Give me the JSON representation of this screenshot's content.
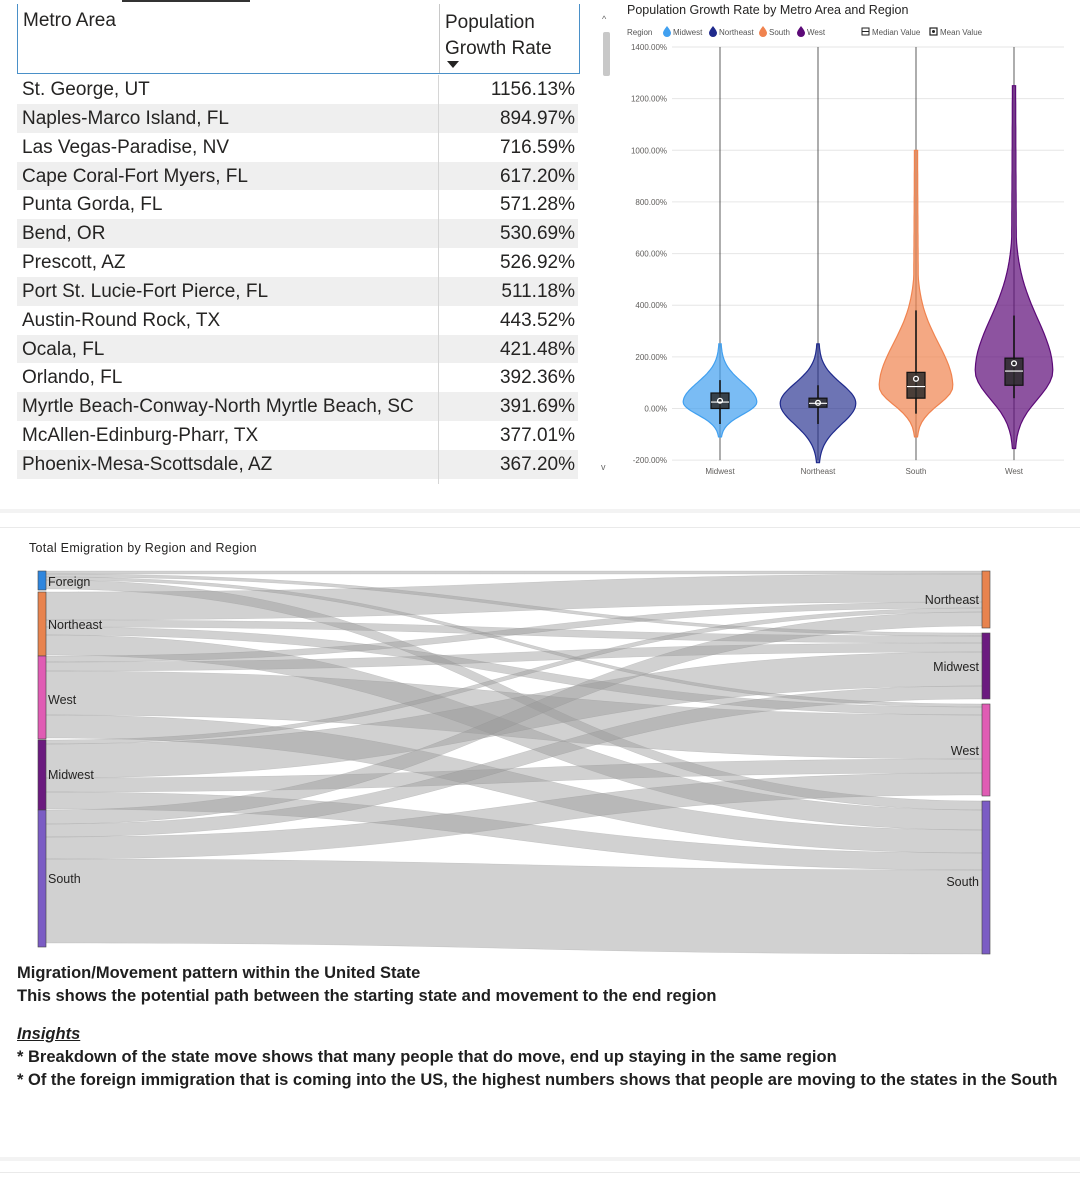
{
  "table": {
    "header_metro": "Metro Area",
    "header_rate": "Population Growth Rate",
    "rows": [
      {
        "metro": "St. George, UT",
        "rate": "1156.13%"
      },
      {
        "metro": "Naples-Marco Island, FL",
        "rate": "894.97%"
      },
      {
        "metro": "Las Vegas-Paradise, NV",
        "rate": "716.59%"
      },
      {
        "metro": "Cape Coral-Fort Myers, FL",
        "rate": "617.20%"
      },
      {
        "metro": "Punta Gorda, FL",
        "rate": "571.28%"
      },
      {
        "metro": "Bend, OR",
        "rate": "530.69%"
      },
      {
        "metro": "Prescott, AZ",
        "rate": "526.92%"
      },
      {
        "metro": "Port St. Lucie-Fort Pierce, FL",
        "rate": "511.18%"
      },
      {
        "metro": "Austin-Round Rock, TX",
        "rate": "443.52%"
      },
      {
        "metro": "Ocala, FL",
        "rate": "421.48%"
      },
      {
        "metro": "Orlando, FL",
        "rate": "392.36%"
      },
      {
        "metro": "Myrtle Beach-Conway-North Myrtle Beach, SC",
        "rate": "391.69%"
      },
      {
        "metro": "McAllen-Edinburg-Pharr, TX",
        "rate": "377.01%"
      },
      {
        "metro": "Phoenix-Mesa-Scottsdale, AZ",
        "rate": "367.20%"
      }
    ]
  },
  "violin": {
    "title": "Population Growth Rate by Metro Area and Region",
    "legend_label": "Region",
    "legend_median": "Median Value",
    "legend_mean": "Mean Value",
    "y_ticks": [
      "1400.00%",
      "1200.00%",
      "1000.00%",
      "800.00%",
      "600.00%",
      "400.00%",
      "200.00%",
      "0.00%",
      "-200.00%"
    ]
  },
  "chart_data": {
    "type": "violin",
    "title": "Population Growth Rate by Metro Area and Region",
    "ylim": [
      -200,
      1400
    ],
    "series": [
      {
        "name": "Midwest",
        "color": "#41a0f0",
        "min": -110,
        "max": 250,
        "q1": 0,
        "q3": 60,
        "median": 25,
        "mean": 30,
        "whisker_low": -60,
        "whisker_high": 110
      },
      {
        "name": "Northeast",
        "color": "#1f2a8c",
        "min": -210,
        "max": 250,
        "q1": 5,
        "q3": 40,
        "median": 20,
        "mean": 22,
        "whisker_low": -60,
        "whisker_high": 90
      },
      {
        "name": "South",
        "color": "#f0834f",
        "min": -110,
        "max": 1000,
        "q1": 40,
        "q3": 140,
        "median": 85,
        "mean": 115,
        "whisker_low": -20,
        "whisker_high": 380
      },
      {
        "name": "West",
        "color": "#5c0a78",
        "min": -155,
        "max": 1250,
        "q1": 90,
        "q3": 195,
        "median": 145,
        "mean": 175,
        "whisker_low": 40,
        "whisker_high": 360
      }
    ]
  },
  "sankey": {
    "title": "Total Emigration by Region and Region",
    "left_nodes": [
      {
        "label": "Foreign",
        "color": "#2e86de"
      },
      {
        "label": "Northeast",
        "color": "#e8834e"
      },
      {
        "label": "West",
        "color": "#e05cb4"
      },
      {
        "label": "Midwest",
        "color": "#6b1a7f"
      },
      {
        "label": "South",
        "color": "#7b5cc4"
      }
    ],
    "right_nodes": [
      {
        "label": "Northeast",
        "color": "#e8834e"
      },
      {
        "label": "Midwest",
        "color": "#6b1a7f"
      },
      {
        "label": "West",
        "color": "#e05cb4"
      },
      {
        "label": "South",
        "color": "#7b5cc4"
      }
    ]
  },
  "text": {
    "line1": "Migration/Movement pattern within the United State",
    "line2": "This shows the potential path between the starting state and movement to the end region",
    "insights_heading": "Insights",
    "bullet1": "* Breakdown of the state move shows that many people that do move, end up staying in the same region",
    "bullet2": "* Of the foreign immigration that is coming into the US, the highest numbers shows that people are moving to the states in the South"
  }
}
